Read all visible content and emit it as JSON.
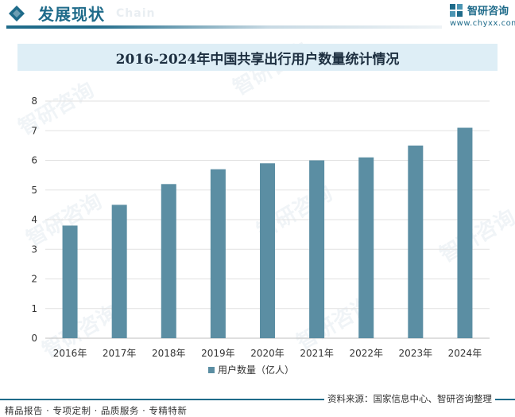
{
  "header": {
    "section_title": "发展现状",
    "section_ghost": "Chain",
    "logo_text": "智研咨询",
    "logo_url": "www.chyxx.com"
  },
  "watermark_text": "智研咨询",
  "footer": {
    "tags": "精品报告 · 专项定制 · 品质服务 · 专精特新",
    "source": "资料来源：国家信息中心、智研咨询整理"
  },
  "colors": {
    "brand": "#1f6b8a",
    "bar": "#5b8ea3",
    "title_bg": "#deeef6",
    "grid": "#e2e2e2"
  },
  "chart_data": {
    "type": "bar",
    "title": "2016-2024年中国共享出行用户数量统计情况",
    "categories": [
      "2016年",
      "2017年",
      "2018年",
      "2019年",
      "2020年",
      "2021年",
      "2022年",
      "2023年",
      "2024年"
    ],
    "series": [
      {
        "name": "用户数量（亿人）",
        "values": [
          3.8,
          4.5,
          5.2,
          5.7,
          5.9,
          6.0,
          6.1,
          6.5,
          7.1
        ]
      }
    ],
    "ylim": [
      0,
      8
    ],
    "yticks": [
      "0",
      "1",
      "2",
      "3",
      "4",
      "5",
      "6",
      "7",
      "8"
    ],
    "grid": true,
    "legend_position": "bottom"
  }
}
